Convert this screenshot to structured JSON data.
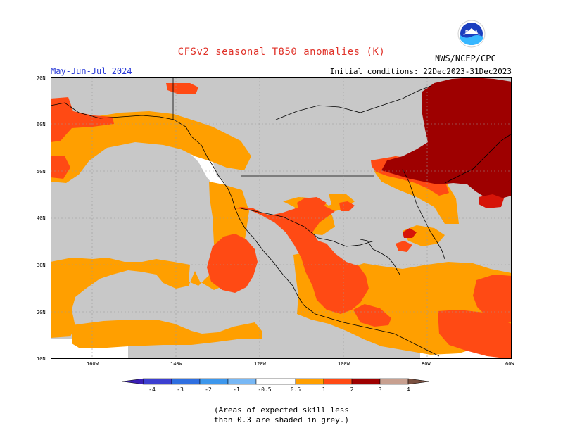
{
  "header": {
    "title": "CFSv2 seasonal T850 anomalies (K)",
    "period": "May-Jun-Jul 2024",
    "initial_conditions": "Initial conditions: 22Dec2023-31Dec2023",
    "agency": "NWS/NCEP/CPC",
    "logo_text": "NOAA"
  },
  "map": {
    "lat_labels": [
      "70N",
      "60N",
      "50N",
      "40N",
      "30N",
      "20N",
      "10N"
    ],
    "lon_labels": [
      "160W",
      "140W",
      "120W",
      "100W",
      "80W",
      "60W"
    ],
    "grey_meaning": "low skill",
    "colors": {
      "grey": "#c8c8c8",
      "orange": "#ff9f00",
      "red_orange": "#ff4a14",
      "red": "#d61408",
      "dark_red": "#9e0000",
      "white": "#ffffff"
    }
  },
  "legend": {
    "labels": [
      "-4",
      "-3",
      "-2",
      "-1",
      "-0.5",
      "0.5",
      "1",
      "2",
      "3",
      "4"
    ],
    "colors": [
      "#3a1fb5",
      "#3c3fd0",
      "#2f6fe0",
      "#3d97ec",
      "#78b8f5",
      "#ffffff",
      "#ff9f00",
      "#ff4a14",
      "#d61408",
      "#9e0000",
      "#c8a090",
      "#7a5040"
    ]
  },
  "note": {
    "line1": "(Areas of expected skill less",
    "line2": "than 0.3 are shaded in grey.)"
  }
}
